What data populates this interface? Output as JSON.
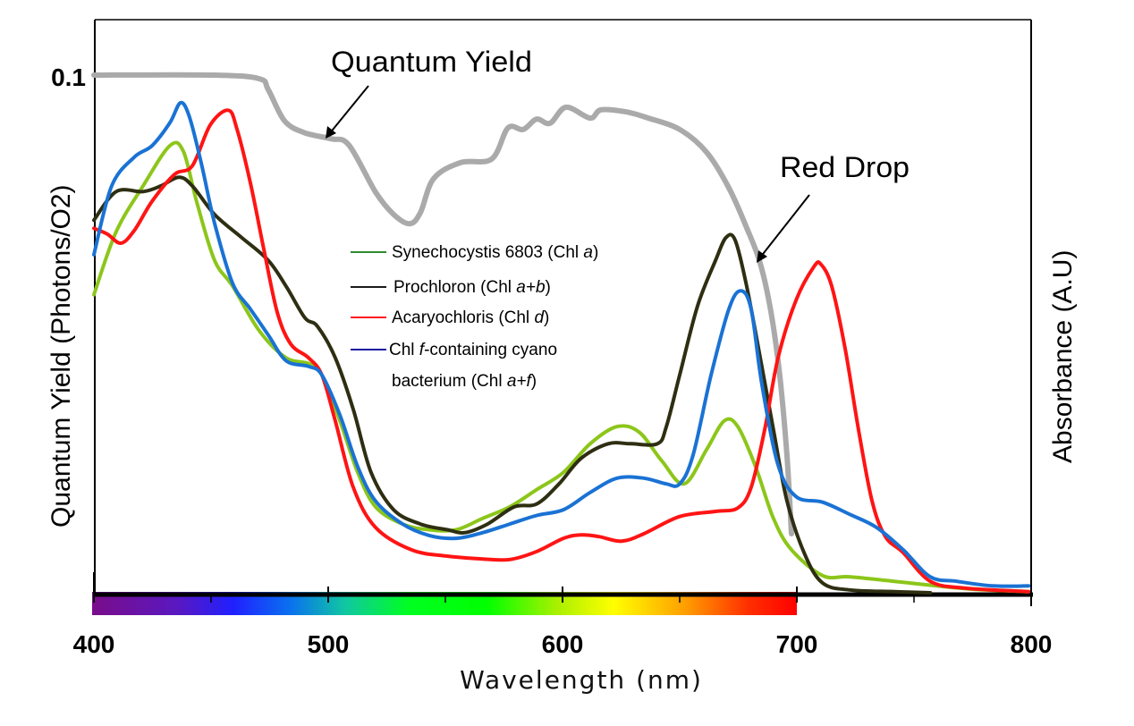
{
  "chart_data": {
    "type": "line",
    "title": "",
    "xlabel": "Wavelength (nm)",
    "ylabel_left": "Quantum Yield (Photons/O2)",
    "ylabel_right": "Absorbance (A.U)",
    "xlim": [
      400,
      800
    ],
    "x_ticks": [
      400,
      500,
      600,
      700,
      800
    ],
    "x_tick_labels": [
      "400",
      "500",
      "600",
      "700",
      "800"
    ],
    "x_minor_ticks": [
      450,
      550,
      650,
      750
    ],
    "ylim_left": [
      0,
      0.11
    ],
    "y_left_ticks": [
      0.1
    ],
    "y_left_tick_labels": [
      "0.1"
    ],
    "ylim_right": [
      0,
      1
    ],
    "grid": false,
    "visible_spectrum_bar": {
      "from_nm": 400,
      "to_nm": 700
    },
    "annotations": [
      {
        "text": "Quantum Yield",
        "points_to_nm": 500
      },
      {
        "text": "Red Drop",
        "points_to_nm": 680
      }
    ],
    "legend": {
      "placement": "center",
      "entries": [
        {
          "label_parts": [
            "Synechocystis 6803 (Chl ",
            "a",
            ")"
          ],
          "color": "#2e8b2e"
        },
        {
          "label_parts": [
            "Prochloron (Chl ",
            "a+b",
            ")"
          ],
          "color": "#1a1a1a"
        },
        {
          "label_parts": [
            "Acaryochloris (Chl ",
            "d",
            ")"
          ],
          "color": "#ff1a1a"
        },
        {
          "label_parts": [
            "Chl ",
            "f",
            "-containing cyano"
          ],
          "label_line2_parts": [
            "bacterium (Chl ",
            "a+f",
            ")"
          ],
          "color": "#1a1aa0"
        }
      ]
    },
    "series": [
      {
        "name": "Quantum Yield",
        "axis": "left",
        "color": "#aaaaaa",
        "x": [
          400,
          451.5,
          470.6,
          474.4,
          481.3,
          489.7,
          501.1,
          508.8,
          520.2,
          527.9,
          534.7,
          539.3,
          545,
          556.5,
          569.8,
          576.7,
          583.2,
          588.9,
          594.7,
          601.5,
          611.8,
          616.4,
          627.1,
          636.6,
          650,
          661.5,
          671,
          678.6,
          684.4,
          689,
          692.7,
          695.8,
          697.7
        ],
        "y": [
          0.1,
          0.1,
          0.0993,
          0.0972,
          0.0912,
          0.0889,
          0.0877,
          0.0865,
          0.0774,
          0.0731,
          0.0713,
          0.0734,
          0.08,
          0.0831,
          0.0838,
          0.0898,
          0.0895,
          0.0915,
          0.0907,
          0.0938,
          0.0917,
          0.0933,
          0.0929,
          0.0917,
          0.0895,
          0.0851,
          0.0782,
          0.0705,
          0.0636,
          0.0541,
          0.042,
          0.0264,
          0.0114
        ]
      },
      {
        "name": "Synechocystis 6803 (Chl a)",
        "axis": "right",
        "color": "#8cc61a",
        "x": [
          400,
          409.5,
          421,
          432.4,
          438.2,
          444,
          451.5,
          459.2,
          470.6,
          482,
          491.6,
          497.3,
          505,
          512.6,
          520.2,
          531.7,
          543.1,
          554.6,
          566,
          577.5,
          589,
          600.4,
          611.8,
          623.3,
          632.8,
          642.4,
          651.9,
          661.5,
          669,
          674.8,
          682.4,
          690,
          697.7,
          711,
          722.5,
          741.6,
          764.5,
          779.8,
          798.9
        ],
        "y": [
          0.52,
          0.63,
          0.71,
          0.78,
          0.77,
          0.68,
          0.58,
          0.535,
          0.457,
          0.41,
          0.4,
          0.38,
          0.3,
          0.21,
          0.15,
          0.12,
          0.11,
          0.11,
          0.13,
          0.15,
          0.18,
          0.21,
          0.26,
          0.29,
          0.28,
          0.23,
          0.19,
          0.25,
          0.3,
          0.29,
          0.22,
          0.13,
          0.075,
          0.03,
          0.028,
          0.02,
          0.01,
          0.005,
          0.002
        ]
      },
      {
        "name": "Prochloron (Chl a+b)",
        "axis": "right",
        "color": "#2e2e12",
        "x": [
          400,
          409.5,
          421,
          428.6,
          436.3,
          442,
          451.5,
          463,
          474.4,
          482,
          490,
          495.4,
          503,
          510.7,
          518.3,
          527.9,
          539.3,
          550.8,
          558.4,
          568,
          579.4,
          589,
          598.5,
          608,
          619.5,
          629,
          640.5,
          644.3,
          650,
          657.6,
          665.3,
          669.8,
          673.7,
          678.6,
          684.4,
          690,
          695.8,
          703.4,
          711,
          722.5,
          741.6,
          757
        ],
        "y": [
          0.65,
          0.7,
          0.7,
          0.71,
          0.725,
          0.71,
          0.66,
          0.62,
          0.58,
          0.535,
          0.48,
          0.465,
          0.41,
          0.32,
          0.21,
          0.145,
          0.12,
          0.11,
          0.105,
          0.12,
          0.15,
          0.155,
          0.19,
          0.235,
          0.26,
          0.26,
          0.26,
          0.29,
          0.38,
          0.5,
          0.58,
          0.62,
          0.615,
          0.535,
          0.41,
          0.285,
          0.16,
          0.067,
          0.017,
          0.005,
          0.002,
          0.0
        ]
      },
      {
        "name": "Acaryochloris (Chl d)",
        "axis": "right",
        "color": "#ff1414",
        "x": [
          400,
          405.7,
          411.5,
          417.2,
          424.8,
          434.4,
          442,
          449.6,
          457.3,
          461,
          466.8,
          472.5,
          478.2,
          484,
          491.6,
          497.3,
          503,
          510.7,
          520.2,
          535.5,
          550.8,
          566,
          577.5,
          589,
          600.4,
          608,
          615.6,
          625.2,
          634.7,
          650,
          665.3,
          674.8,
          680.5,
          686.3,
          692,
          699.6,
          707.3,
          710.3,
          714.9,
          720.6,
          726.3,
          732.1,
          737.8,
          745.4,
          757,
          772,
          798.9
        ],
        "y": [
          0.636,
          0.626,
          0.61,
          0.632,
          0.683,
          0.73,
          0.745,
          0.816,
          0.842,
          0.81,
          0.715,
          0.6,
          0.49,
          0.434,
          0.41,
          0.38,
          0.3,
          0.184,
          0.114,
          0.075,
          0.064,
          0.059,
          0.058,
          0.072,
          0.095,
          0.101,
          0.098,
          0.09,
          0.103,
          0.133,
          0.142,
          0.148,
          0.184,
          0.285,
          0.41,
          0.51,
          0.569,
          0.573,
          0.535,
          0.426,
          0.285,
          0.16,
          0.098,
          0.07,
          0.02,
          0.008,
          0.002
        ]
      },
      {
        "name": "Chl f-containing cyano bacterium (Chl a+f)",
        "axis": "right",
        "color": "#1a72d4",
        "x": [
          400,
          407.6,
          417.2,
          424.8,
          432.4,
          437,
          440.8,
          445.8,
          451.5,
          459.2,
          466.8,
          474.4,
          482,
          491.6,
          497.3,
          505,
          512.6,
          520.2,
          531.7,
          543.1,
          554.6,
          566,
          577.5,
          589,
          600.4,
          611.8,
          623.3,
          634.7,
          644.3,
          650,
          655.7,
          663.4,
          671,
          676,
          680.5,
          685.1,
          692,
          699.6,
          711,
          722.5,
          734,
          745.4,
          756.9,
          768.3,
          783.6,
          798.9
        ],
        "y": [
          0.59,
          0.71,
          0.76,
          0.78,
          0.82,
          0.855,
          0.83,
          0.75,
          0.645,
          0.54,
          0.495,
          0.45,
          0.405,
          0.395,
          0.38,
          0.31,
          0.22,
          0.16,
          0.12,
          0.1,
          0.095,
          0.105,
          0.12,
          0.135,
          0.145,
          0.175,
          0.2,
          0.2,
          0.19,
          0.19,
          0.24,
          0.38,
          0.495,
          0.527,
          0.495,
          0.363,
          0.223,
          0.168,
          0.158,
          0.137,
          0.114,
          0.075,
          0.028,
          0.02,
          0.012,
          0.012
        ]
      }
    ]
  }
}
